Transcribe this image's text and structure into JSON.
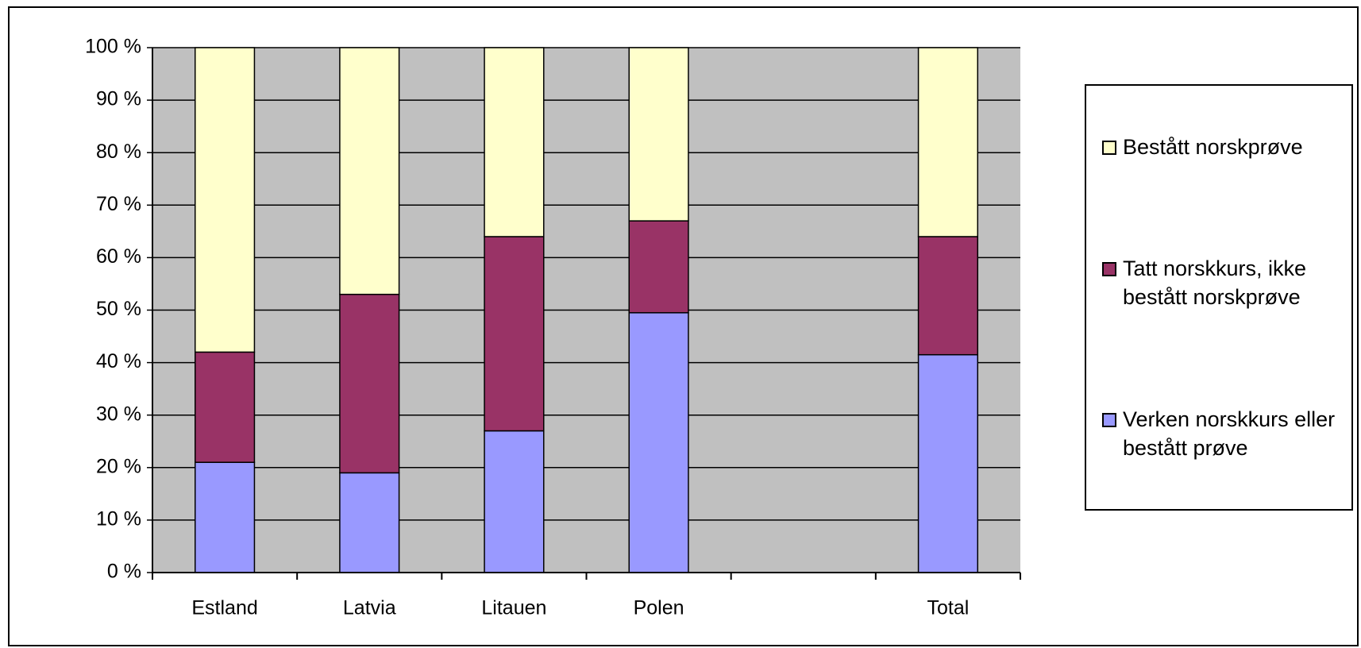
{
  "chart_data": {
    "type": "stacked_bar",
    "categories": [
      "Estland",
      "Latvia",
      "Litauen",
      "Polen",
      null,
      "Total"
    ],
    "series": [
      {
        "name": "Verken norskkurs eller bestått prøve",
        "color": "#9999ff",
        "values": [
          21,
          19,
          27,
          49.5,
          null,
          41.5
        ]
      },
      {
        "name": "Tatt norskkurs, ikke bestått norskprøve",
        "color": "#993366",
        "values": [
          21,
          34,
          37,
          17.5,
          null,
          22.5
        ]
      },
      {
        "name": "Bestått norskprøve",
        "color": "#ffffcc",
        "values": [
          58,
          47,
          36,
          33,
          null,
          36
        ]
      }
    ],
    "ylim": [
      0,
      100
    ],
    "yticks": [
      {
        "value": 0,
        "label": "0 %"
      },
      {
        "value": 10,
        "label": "10 %"
      },
      {
        "value": 20,
        "label": "20 %"
      },
      {
        "value": 30,
        "label": "30 %"
      },
      {
        "value": 40,
        "label": "40 %"
      },
      {
        "value": 50,
        "label": "50 %"
      },
      {
        "value": 60,
        "label": "60 %"
      },
      {
        "value": 70,
        "label": "70 %"
      },
      {
        "value": 80,
        "label": "80 %"
      },
      {
        "value": 90,
        "label": "90 %"
      },
      {
        "value": 100,
        "label": "100 %"
      }
    ],
    "grid": true,
    "plot_background": "#c0c0c0",
    "legend": "right"
  }
}
